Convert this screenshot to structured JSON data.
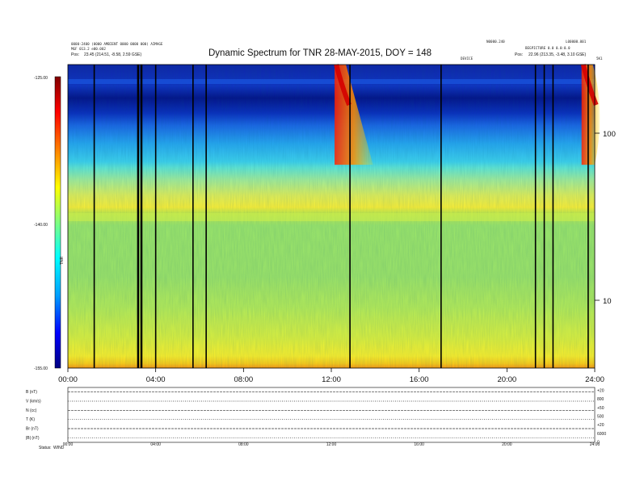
{
  "header": {
    "title": "Dynamic Spectrum for TNR 28-MAY-2015, DOY = 148",
    "left_line1": "0000-2400 (0000 AMBIENT 0000 0000 000) AIMAGE",
    "left_line2": "MGF 013.2 e00.002",
    "left_line3": "23.45 (214.51, -8.58, 2.59 GSE)",
    "left_label3": "Pos:",
    "right_line1": "N0000.240",
    "right_line2": "L00000.001",
    "right_line3": "BEGPICTURE 0.0 0.0:0.0",
    "right_label4": "Pos:",
    "right_line4": "22.96 (213.35, -3.48, 3.10 GSE)",
    "center_small": "DEVICE",
    "corner_small": "5K1"
  },
  "chart_data": {
    "type": "heatmap",
    "title": "Dynamic Spectrum for TNR 28-MAY-2015, DOY = 148",
    "x_ticks": [
      "00:00",
      "04:00",
      "08:00",
      "12:00",
      "16:00",
      "20:00",
      "24:00"
    ],
    "x_range_hours": [
      0,
      24
    ],
    "colorbar": {
      "ticks": [
        "-125.00",
        "-140.00",
        "-155.00"
      ],
      "range": [
        -155,
        -125
      ],
      "label": "TNR",
      "colors": [
        "#000080",
        "#0000ff",
        "#00a0ff",
        "#00ffff",
        "#80ff80",
        "#ffff00",
        "#ff8000",
        "#ff0000",
        "#800000"
      ]
    },
    "right_axis": {
      "ticks": [
        "100",
        "10"
      ],
      "scale": "log"
    },
    "vertical_gaps_hours": [
      1.2,
      3.2,
      3.35,
      4.0,
      5.7,
      6.3,
      12.85,
      17.0,
      21.3,
      21.7,
      22.1,
      23.7
    ],
    "bursts": [
      {
        "start_hour": 12.15,
        "end_hour": 13.9,
        "type": "type-III-like drift"
      },
      {
        "start_hour": 23.4,
        "end_hour": 24.0,
        "type": "type-III-like drift"
      }
    ]
  },
  "lower_panel": {
    "row_labels": [
      "B (nT)",
      "V (km/s)",
      "N (cc)",
      "T (K)",
      "Br (nT)",
      "|B| (nT)"
    ],
    "x_ticks": [
      "00:00",
      "04:00",
      "08:00",
      "12:00",
      "16:00",
      "20:00",
      "24:00"
    ],
    "right_labels": [
      "+20",
      "800",
      "+50",
      "500",
      "+20",
      "6000",
      "0"
    ],
    "footer_label": "Status:",
    "footer_value": "WIND"
  }
}
